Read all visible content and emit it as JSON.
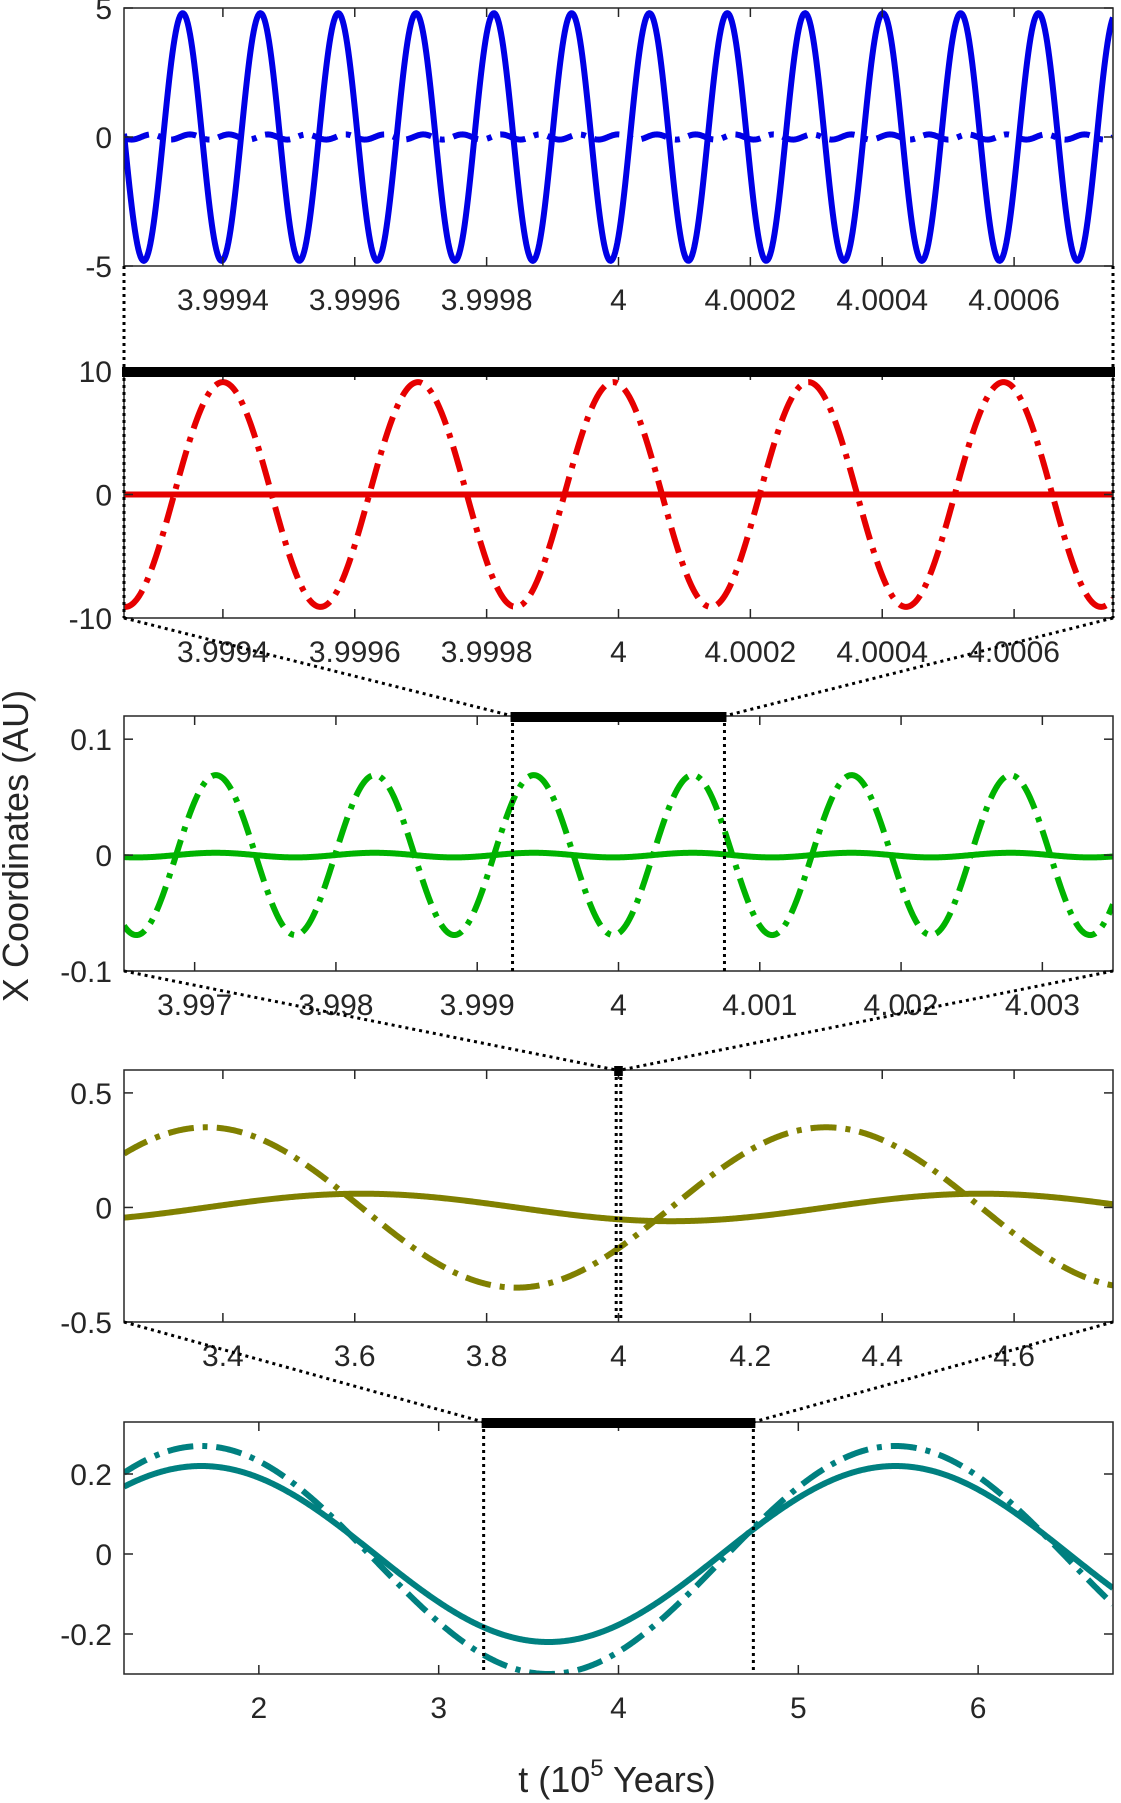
{
  "figure": {
    "ylabel": "X Coordinates (AU)",
    "xlabel": "t (10",
    "xlabel_exp": "5",
    "xlabel_tail": " Years)"
  },
  "chart_data": [
    {
      "type": "line",
      "panel": 1,
      "color": "#0000e6",
      "xlim": [
        3.99925,
        4.00075
      ],
      "ylim": [
        -5,
        5
      ],
      "xticks": [
        3.9994,
        3.9996,
        3.9998,
        4,
        4.0002,
        4.0004,
        4.0006
      ],
      "xtick_labels": [
        "3.9994",
        "3.9996",
        "3.9998",
        "4",
        "4.0002",
        "4.0004",
        "4.0006"
      ],
      "yticks": [
        -5,
        0,
        5
      ],
      "ytick_labels": [
        "-5",
        "0",
        "5"
      ],
      "series": [
        {
          "style": "solid",
          "amplitude": 4.8,
          "period": 0.000118,
          "phase_x": 3.99928,
          "phase_at": "min",
          "offset": 0
        },
        {
          "style": "dashdot",
          "amplitude": 0.1,
          "period": 5.9e-05,
          "phase_x": 3.99935,
          "phase_at": "max",
          "offset": 0
        }
      ]
    },
    {
      "type": "line",
      "panel": 2,
      "color": "#e60000",
      "xlim": [
        3.99925,
        4.00075
      ],
      "ylim": [
        -10,
        10
      ],
      "xticks": [
        3.9994,
        3.9996,
        3.9998,
        4,
        4.0002,
        4.0004,
        4.0006
      ],
      "xtick_labels": [
        "3.9994",
        "3.9996",
        "3.9998",
        "4",
        "4.0002",
        "4.0004",
        "4.0006"
      ],
      "yticks": [
        -10,
        0,
        10
      ],
      "ytick_labels": [
        "-10",
        "0",
        "10"
      ],
      "series": [
        {
          "style": "dashdot",
          "amplitude": 9.1,
          "period": 0.000296,
          "phase_x": 3.9994,
          "phase_at": "max",
          "offset": 0
        },
        {
          "style": "solid",
          "amplitude": 0.0,
          "period": 0.000296,
          "phase_x": 3.9994,
          "phase_at": "max",
          "offset": 0
        }
      ]
    },
    {
      "type": "line",
      "panel": 3,
      "color": "#00b300",
      "xlim": [
        3.9965,
        4.0035
      ],
      "ylim": [
        -0.1,
        0.12
      ],
      "xticks": [
        3.997,
        3.998,
        3.999,
        4,
        4.001,
        4.002,
        4.003
      ],
      "xtick_labels": [
        "3.997",
        "3.998",
        "3.999",
        "4",
        "4.001",
        "4.002",
        "4.003"
      ],
      "yticks": [
        -0.1,
        0,
        0.1
      ],
      "ytick_labels": [
        "-0.1",
        "0",
        "0.1"
      ],
      "series": [
        {
          "style": "dashdot",
          "amplitude": 0.069,
          "period": 0.001125,
          "phase_x": 3.99715,
          "phase_at": "max",
          "offset": 0
        },
        {
          "style": "solid",
          "amplitude": 0.002,
          "period": 0.001125,
          "phase_x": 3.99715,
          "phase_at": "max",
          "offset": 0
        }
      ]
    },
    {
      "type": "line",
      "panel": 4,
      "color": "#808000",
      "xlim": [
        3.25,
        4.75
      ],
      "ylim": [
        -0.5,
        0.6
      ],
      "xticks": [
        3.4,
        3.6,
        3.8,
        4,
        4.2,
        4.4,
        4.6
      ],
      "xtick_labels": [
        "3.4",
        "3.6",
        "3.8",
        "4",
        "4.2",
        "4.4",
        "4.6"
      ],
      "yticks": [
        -0.5,
        0,
        0.5
      ],
      "ytick_labels": [
        "-0.5",
        "0",
        "0.5"
      ],
      "series": [
        {
          "style": "dashdot",
          "amplitude": 0.35,
          "period": 0.94,
          "phase_x": 3.375,
          "phase_at": "max",
          "offset": 0
        },
        {
          "style": "solid",
          "amplitude": 0.06,
          "period": 0.94,
          "phase_x": 3.61,
          "phase_at": "max",
          "offset": 0
        }
      ]
    },
    {
      "type": "line",
      "panel": 5,
      "color": "#008080",
      "xlim": [
        1.25,
        6.75
      ],
      "ylim": [
        -0.3,
        0.33
      ],
      "xticks": [
        2,
        3,
        4,
        5,
        6
      ],
      "xtick_labels": [
        "2",
        "3",
        "4",
        "5",
        "6"
      ],
      "yticks": [
        -0.2,
        0,
        0.2
      ],
      "ytick_labels": [
        "-0.2",
        "0",
        "0.2"
      ],
      "series": [
        {
          "style": "dashdot",
          "amplitude": 0.285,
          "period": 3.86,
          "phase_x": 1.68,
          "phase_at": "max",
          "offset": -0.015
        },
        {
          "style": "solid",
          "amplitude": 0.22,
          "period": 3.86,
          "phase_x": 1.68,
          "phase_at": "max",
          "offset": 0
        }
      ]
    }
  ]
}
